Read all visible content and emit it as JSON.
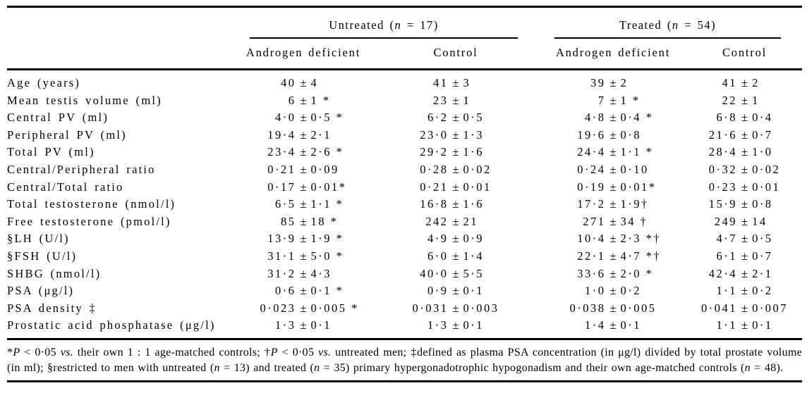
{
  "table": {
    "group_headers": [
      {
        "name": "untreated-group",
        "segments": [
          {
            "t": "Untreated ("
          },
          {
            "t": "n",
            "i": true
          },
          {
            "t": " = 17)"
          }
        ]
      },
      {
        "name": "treated-group",
        "segments": [
          {
            "t": "Treated ("
          },
          {
            "t": "n",
            "i": true
          },
          {
            "t": " = 54)"
          }
        ]
      }
    ],
    "column_headers": [
      "Androgen deficient",
      "Control",
      "Androgen deficient",
      "Control"
    ],
    "plus_minus_symbol": "±",
    "rows": [
      {
        "label": "Age (years)",
        "values": [
          "40 ± 4",
          "41 ± 3",
          "39 ± 2",
          "41 ± 2"
        ]
      },
      {
        "label": "Mean testis volume (ml)",
        "values": [
          "6 ± 1 *",
          "23 ± 1",
          "7 ± 1 *",
          "22 ± 1"
        ]
      },
      {
        "label": "Central PV (ml)",
        "values": [
          "4·0 ± 0·5 *",
          "6·2 ± 0·5",
          "4·8 ± 0·4 *",
          "6·8 ± 0·4"
        ]
      },
      {
        "label": "Peripheral PV (ml)",
        "values": [
          "19·4 ± 2·1",
          "23·0 ± 1·3",
          "19·6 ± 0·8",
          "21·6 ± 0·7"
        ]
      },
      {
        "label": "Total PV (ml)",
        "values": [
          "23·4 ± 2·6 *",
          "29·2 ± 1·6",
          "24·4 ± 1·1 *",
          "28·4 ± 1·0"
        ]
      },
      {
        "label": "Central/Peripheral ratio",
        "values": [
          "0·21 ± 0·09",
          "0·28 ± 0·02",
          "0·24 ± 0·10",
          "0·32 ± 0·02"
        ]
      },
      {
        "label": "Central/Total ratio",
        "values": [
          "0·17 ± 0·01*",
          "0·21 ± 0·01",
          "0·19 ± 0·01*",
          "0·23 ± 0·01"
        ]
      },
      {
        "label": "Total testosterone (nmol/l)",
        "values": [
          "6·5 ± 1·1 *",
          "16·8 ± 1·6",
          "17·2 ± 1·9†",
          "15·9 ± 0·8"
        ]
      },
      {
        "label": "Free testosterone (pmol/l)",
        "values": [
          "85 ± 18 *",
          "242 ± 21",
          "271 ± 34 †",
          "249 ± 14"
        ]
      },
      {
        "label": "§LH (U/l)",
        "values": [
          "13·9 ± 1·9 *",
          "4·9 ± 0·9",
          "10·4 ± 2·3 *†",
          "4·7 ± 0·5"
        ]
      },
      {
        "label": "§FSH (U/l)",
        "values": [
          "31·1 ± 5·0 *",
          "6·0 ± 1·4",
          "22·1 ± 4·7 *†",
          "6·1 ± 0·7"
        ]
      },
      {
        "label": "SHBG (nmol/l)",
        "values": [
          "31·2 ± 4·3",
          "40·0 ± 5·5",
          "33·6 ± 2·0 *",
          "42·4 ± 2·1"
        ]
      },
      {
        "label": "PSA (μg/l)",
        "values": [
          "0·6 ± 0·1 *",
          "0·9 ± 0·1",
          "1·0 ± 0·2",
          "1·1 ± 0·2"
        ]
      },
      {
        "label": "PSA density ‡",
        "values": [
          "0·023 ± 0·005 *",
          "0·031 ± 0·003",
          "0·038 ± 0·005",
          "0·041 ± 0·007"
        ]
      },
      {
        "label": "Prostatic acid phosphatase (μg/l)",
        "values": [
          "1·3 ± 0·1",
          "1·3 ± 0·1",
          "1·4 ± 0·1",
          "1·1 ± 0·1"
        ]
      }
    ]
  },
  "footnote": {
    "segments": [
      {
        "t": "*"
      },
      {
        "t": "P",
        "i": true
      },
      {
        "t": " < 0·05 "
      },
      {
        "t": "vs.",
        "i": true
      },
      {
        "t": " their own 1 : 1 age-matched controls; †"
      },
      {
        "t": "P",
        "i": true
      },
      {
        "t": " < 0·05 "
      },
      {
        "t": "vs.",
        "i": true
      },
      {
        "t": " untreated men; ‡defined as plasma PSA concentration (in μg/l) divided by total prostate volume (in ml); §restricted to men with untreated ("
      },
      {
        "t": "n",
        "i": true
      },
      {
        "t": " = 13) and treated ("
      },
      {
        "t": "n",
        "i": true
      },
      {
        "t": " = 35) primary hypergonadotrophic hypogonadism and their own age-matched controls ("
      },
      {
        "t": "n",
        "i": true
      },
      {
        "t": " = 48)."
      }
    ]
  },
  "colors": {
    "text": "#000000",
    "background": "#ffffff",
    "rule": "#000000"
  }
}
